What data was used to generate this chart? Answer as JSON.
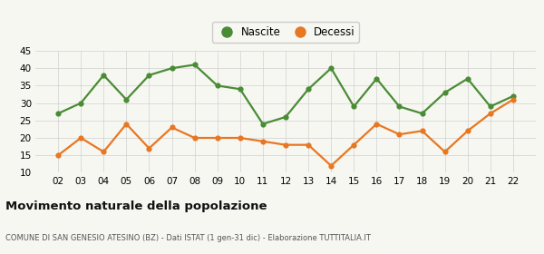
{
  "years": [
    "02",
    "03",
    "04",
    "05",
    "06",
    "07",
    "08",
    "09",
    "10",
    "11",
    "12",
    "13",
    "14",
    "15",
    "16",
    "17",
    "18",
    "19",
    "20",
    "21",
    "22"
  ],
  "nascite": [
    27,
    30,
    38,
    31,
    38,
    40,
    41,
    35,
    34,
    24,
    26,
    34,
    40,
    29,
    37,
    29,
    27,
    33,
    37,
    29,
    32
  ],
  "decessi": [
    15,
    20,
    16,
    24,
    17,
    23,
    20,
    20,
    20,
    19,
    18,
    18,
    12,
    18,
    24,
    21,
    22,
    16,
    22,
    27,
    31
  ],
  "nascite_color": "#4a8c35",
  "decessi_color": "#e87722",
  "background_color": "#f7f7f2",
  "grid_color": "#d0d0d0",
  "ylim": [
    10,
    45
  ],
  "yticks": [
    10,
    15,
    20,
    25,
    30,
    35,
    40,
    45
  ],
  "title": "Movimento naturale della popolazione",
  "subtitle": "COMUNE DI SAN GENESIO ATESINO (BZ) - Dati ISTAT (1 gen-31 dic) - Elaborazione TUTTITALIA.IT",
  "legend_nascite": "Nascite",
  "legend_decessi": "Decessi",
  "marker_size": 4.5,
  "line_width": 1.6
}
